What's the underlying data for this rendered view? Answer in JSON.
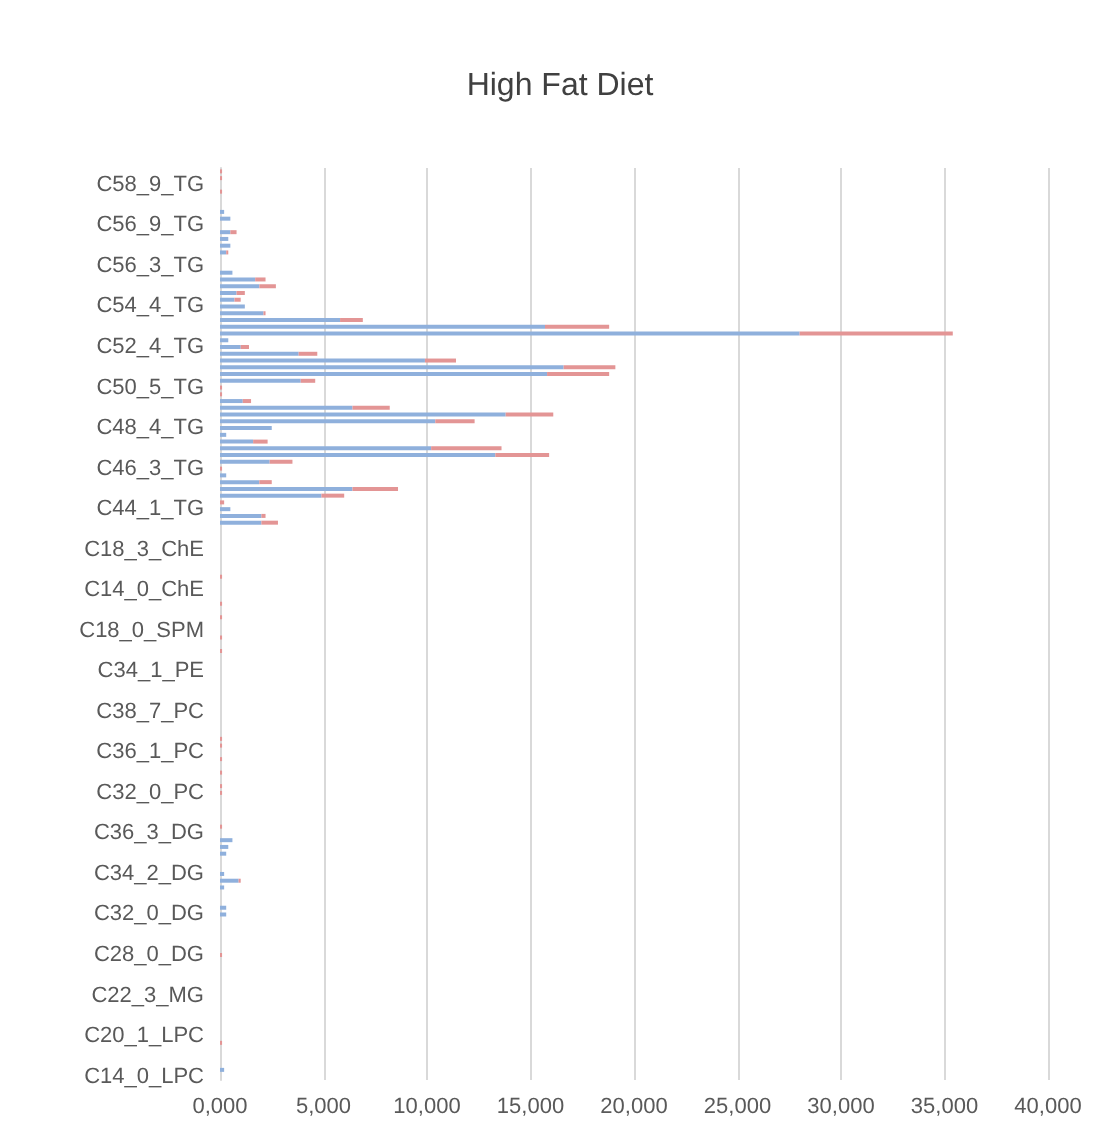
{
  "chart_data": {
    "type": "bar",
    "title": "High Fat Diet",
    "orientation": "horizontal",
    "stacked": true,
    "grid": "x",
    "categories": [
      null,
      null,
      "C58_9_TG",
      null,
      null,
      null,
      null,
      null,
      "C56_9_TG",
      null,
      null,
      null,
      null,
      null,
      "C56_3_TG",
      null,
      null,
      null,
      null,
      null,
      "C54_4_TG",
      null,
      null,
      null,
      null,
      null,
      "C52_4_TG",
      null,
      null,
      null,
      null,
      null,
      "C50_5_TG",
      null,
      null,
      null,
      null,
      null,
      "C48_4_TG",
      null,
      null,
      null,
      null,
      null,
      "C46_3_TG",
      null,
      null,
      null,
      null,
      null,
      "C44_1_TG",
      null,
      null,
      null,
      null,
      null,
      "C18_3_ChE",
      null,
      null,
      null,
      null,
      null,
      "C14_0_ChE",
      null,
      null,
      null,
      null,
      null,
      "C18_0_SPM",
      null,
      null,
      null,
      null,
      null,
      "C34_1_PE",
      null,
      null,
      null,
      null,
      null,
      "C38_7_PC",
      null,
      null,
      null,
      null,
      null,
      "C36_1_PC",
      null,
      null,
      null,
      null,
      null,
      "C32_0_PC",
      null,
      null,
      null,
      null,
      null,
      "C36_3_DG",
      null,
      null,
      null,
      null,
      null,
      "C34_2_DG",
      null,
      null,
      null,
      null,
      null,
      "C32_0_DG",
      null,
      null,
      null,
      null,
      null,
      "C28_0_DG",
      null,
      null,
      null,
      null,
      null,
      "C22_3_MG",
      null,
      null,
      null,
      null,
      null,
      "C20_1_LPC",
      null,
      null,
      null,
      null,
      null,
      "C14_0_LPC"
    ],
    "series": [
      {
        "color": "#8fb0dc",
        "values": [
          null,
          null,
          null,
          null,
          null,
          null,
          200,
          500,
          null,
          500,
          400,
          500,
          300,
          null,
          null,
          600,
          1700,
          1900,
          800,
          700,
          1200,
          2100,
          5800,
          15700,
          28000,
          400,
          1000,
          3800,
          9900,
          16600,
          15800,
          3900,
          null,
          null,
          1100,
          6400,
          13800,
          10400,
          2500,
          300,
          1600,
          10200,
          13300,
          2400,
          null,
          300,
          1900,
          6400,
          4900,
          null,
          500,
          2000,
          2000,
          null,
          null,
          null,
          null,
          null,
          null,
          null,
          null,
          null,
          null,
          null,
          null,
          null,
          null,
          null,
          null,
          null,
          null,
          null,
          null,
          null,
          null,
          null,
          null,
          null,
          null,
          null,
          null,
          null,
          null,
          null,
          null,
          null,
          null,
          null,
          null,
          null,
          null,
          null,
          null,
          null,
          null,
          null,
          null,
          null,
          null,
          600,
          400,
          300,
          null,
          null,
          200,
          900,
          200,
          null,
          null,
          300,
          300,
          null,
          null,
          null,
          null,
          null,
          null,
          null,
          null,
          null,
          null,
          null,
          null,
          null,
          null,
          null,
          null,
          null,
          null,
          null,
          null,
          null,
          null,
          200,
          null
        ]
      },
      {
        "color": "#e39595",
        "values": [
          100,
          100,
          null,
          100,
          null,
          null,
          null,
          null,
          null,
          300,
          null,
          null,
          100,
          null,
          null,
          null,
          500,
          800,
          400,
          300,
          null,
          100,
          1100,
          3100,
          7400,
          null,
          400,
          900,
          1500,
          2500,
          3000,
          700,
          100,
          100,
          400,
          1800,
          2300,
          1900,
          null,
          null,
          700,
          3400,
          2600,
          1100,
          100,
          null,
          600,
          2200,
          1100,
          200,
          null,
          200,
          800,
          null,
          null,
          null,
          null,
          null,
          null,
          null,
          100,
          null,
          null,
          null,
          100,
          null,
          100,
          null,
          null,
          100,
          null,
          100,
          null,
          null,
          null,
          null,
          null,
          null,
          null,
          null,
          null,
          null,
          null,
          null,
          100,
          100,
          null,
          100,
          null,
          100,
          null,
          100,
          100,
          null,
          null,
          null,
          null,
          100,
          null,
          null,
          null,
          null,
          null,
          null,
          null,
          100,
          null,
          null,
          null,
          null,
          null,
          null,
          null,
          null,
          null,
          null,
          100,
          null,
          null,
          null,
          null,
          null,
          null,
          null,
          null,
          null,
          null,
          null,
          null,
          100,
          null,
          null,
          null,
          null,
          null
        ]
      }
    ],
    "xlim": [
      0,
      40000
    ],
    "xticks": [
      {
        "value": 0,
        "label": "0,000"
      },
      {
        "value": 5000,
        "label": "5,000"
      },
      {
        "value": 10000,
        "label": "10,000"
      },
      {
        "value": 15000,
        "label": "15,000"
      },
      {
        "value": 20000,
        "label": "20,000"
      },
      {
        "value": 25000,
        "label": "25,000"
      },
      {
        "value": 30000,
        "label": "30,000"
      },
      {
        "value": 35000,
        "label": "35,000"
      },
      {
        "value": 40000,
        "label": "40,000"
      }
    ]
  }
}
